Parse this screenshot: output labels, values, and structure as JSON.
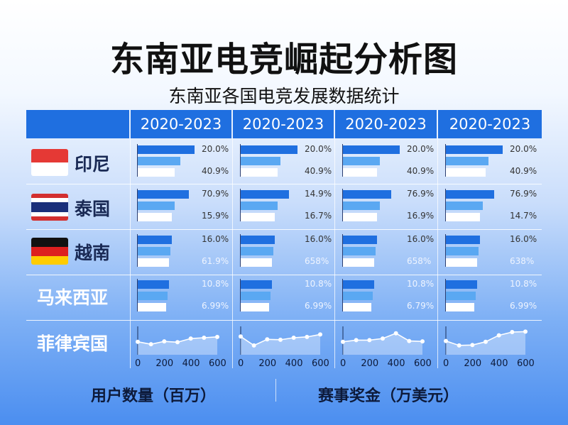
{
  "title": "东南亚电竞崛起分析图",
  "subtitle": "东南亚各国电竞发展数据统计",
  "colors": {
    "bar_dark": "#1f6fe0",
    "bar_mid": "#5aa8f2",
    "bar_light": "#ffffff",
    "header": "#1f6fe0"
  },
  "footer": {
    "left": "用户数量（百万）",
    "right": "赛事奖金（万美元）"
  },
  "chart_data": {
    "type": "bar",
    "columns": [
      "2020-2023",
      "2020-2023",
      "2020-2023",
      "2020-2023"
    ],
    "rows": [
      {
        "label": "印尼",
        "flag": "indonesia-flag",
        "bar_values": [
          [
            20,
            15,
            13
          ],
          [
            20,
            14,
            13
          ],
          [
            20,
            13,
            12
          ],
          [
            20,
            15,
            14
          ]
        ],
        "labels": [
          [
            "20.0%",
            "40.9%"
          ],
          [
            "20.0%",
            "40.9%"
          ],
          [
            "20.0%",
            "40.9%"
          ],
          [
            "20.0%",
            "40.9%"
          ]
        ]
      },
      {
        "label": "泰国",
        "flag": "thailand-flag",
        "bar_values": [
          [
            18,
            13,
            12
          ],
          [
            17,
            13,
            12
          ],
          [
            17,
            13,
            12
          ],
          [
            17,
            13,
            12
          ]
        ],
        "labels": [
          [
            "70.9%",
            "15.9%"
          ],
          [
            "14.9%",
            "16.7%"
          ],
          [
            "76.9%",
            "16.9%"
          ],
          [
            "76.9%",
            "14.7%"
          ]
        ]
      },
      {
        "label": "越南",
        "flag": "germany-flag",
        "bar_values": [
          [
            12,
            11.5,
            11
          ],
          [
            12,
            11.5,
            11
          ],
          [
            12,
            11.5,
            11
          ],
          [
            12,
            11.5,
            11
          ]
        ],
        "labels": [
          [
            "16.0%",
            "61.9%"
          ],
          [
            "16.0%",
            "658%"
          ],
          [
            "16.0%",
            "658%"
          ],
          [
            "16.0%",
            "638%"
          ]
        ]
      },
      {
        "label": "马来西亚",
        "flag": "",
        "bar_values": [
          [
            11,
            10.5,
            10
          ],
          [
            11,
            10.5,
            10
          ],
          [
            11,
            10.5,
            10
          ],
          [
            11,
            10.5,
            10
          ]
        ],
        "labels": [
          [
            "10.8%",
            "6.99%"
          ],
          [
            "10.8%",
            "6.99%"
          ],
          [
            "10.8%",
            "6.79%"
          ],
          [
            "10.8%",
            "6.99%"
          ]
        ]
      }
    ],
    "line_row": {
      "label": "菲律宾国",
      "x_ticks": [
        "0",
        "200",
        "400",
        "600"
      ],
      "xlim": [
        0,
        600
      ],
      "series": [
        {
          "x": [
            0,
            100,
            200,
            300,
            400,
            500,
            600
          ],
          "y": [
            3.2,
            2.6,
            3.3,
            3.1,
            4.0,
            4.2,
            4.4
          ]
        },
        {
          "x": [
            0,
            100,
            200,
            300,
            400,
            500,
            600
          ],
          "y": [
            4.5,
            2.3,
            3.8,
            3.7,
            4.2,
            4.4,
            5.0
          ]
        },
        {
          "x": [
            0,
            100,
            200,
            300,
            400,
            500,
            600
          ],
          "y": [
            3.2,
            3.6,
            3.6,
            4.0,
            5.3,
            3.4,
            3.3
          ]
        },
        {
          "x": [
            0,
            100,
            200,
            300,
            400,
            500,
            600
          ],
          "y": [
            3.4,
            2.3,
            2.4,
            3.2,
            4.8,
            5.6,
            5.7
          ]
        }
      ],
      "ylim": [
        0,
        7
      ]
    }
  }
}
